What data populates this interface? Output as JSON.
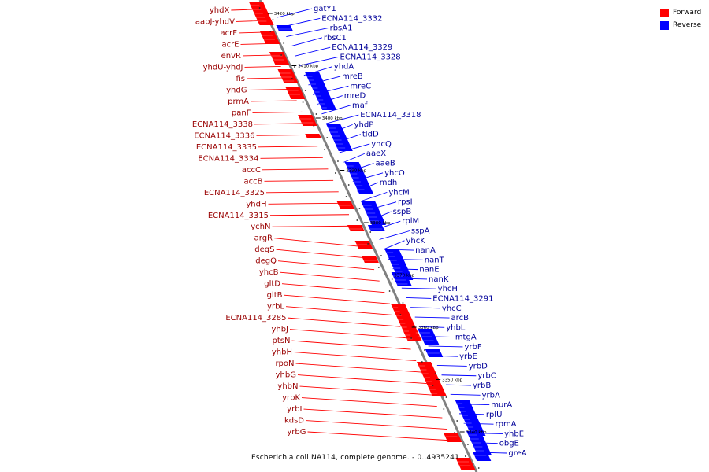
{
  "caption": "Escherichia coli NA114, complete genome. - 0..4935241",
  "legend": [
    {
      "label": "Forward",
      "color": "#ff0000"
    },
    {
      "label": "Reverse",
      "color": "#0000ff"
    }
  ],
  "colors": {
    "forward": "#ff0000",
    "reverse": "#0000ff",
    "backbone": "#808080",
    "reverse_label": "#000099",
    "forward_label": "#990000"
  },
  "kbp_ticks": [
    "3420 kbp",
    "3410 kbp",
    "3400 kbp",
    "3390 kbp",
    "3380 kbp",
    "3370 kbp",
    "3360 kbp",
    "3350 kbp",
    "3340 kbp"
  ],
  "forward_labels": [
    "yhdX",
    "aapJ-yhdV",
    "acrF",
    "acrE",
    "envR",
    "yhdU-yhdJ",
    "fis",
    "yhdG",
    "prmA",
    "panF",
    "ECNA114_3338",
    "ECNA114_3336",
    "ECNA114_3335",
    "ECNA114_3334",
    "accC",
    "accB",
    "ECNA114_3325",
    "yhdH",
    "ECNA114_3315",
    "ychN",
    "argR",
    "degS",
    "degQ",
    "yhcB",
    "gltD",
    "gltB",
    "yrbL",
    "ECNA114_3285",
    "yhbJ",
    "ptsN",
    "yhbH",
    "rpoN",
    "yhbG",
    "yhbN",
    "yrbK",
    "yrbI",
    "kdsD",
    "yrbG"
  ],
  "reverse_labels": [
    "gatY1",
    "ECNA114_3332",
    "rbsA1",
    "rbsC1",
    "ECNA114_3329",
    "ECNA114_3328",
    "yhdA",
    "mreB",
    "mreC",
    "mreD",
    "maf",
    "ECNA114_3318",
    "yhdP",
    "tldD",
    "yhcQ",
    "aaeX",
    "aaeB",
    "yhcO",
    "mdh",
    "yhcM",
    "rpsI",
    "sspB",
    "rplM",
    "sspA",
    "yhcK",
    "nanA",
    "nanT",
    "nanE",
    "nanK",
    "yhcH",
    "ECNA114_3291",
    "yhcC",
    "arcB",
    "yhbL",
    "mtgA",
    "yrbF",
    "yrbE",
    "yrbD",
    "yrbC",
    "yrbB",
    "yrbA",
    "murA",
    "rplU",
    "rpmA",
    "yhbE",
    "obgE",
    "greA"
  ]
}
